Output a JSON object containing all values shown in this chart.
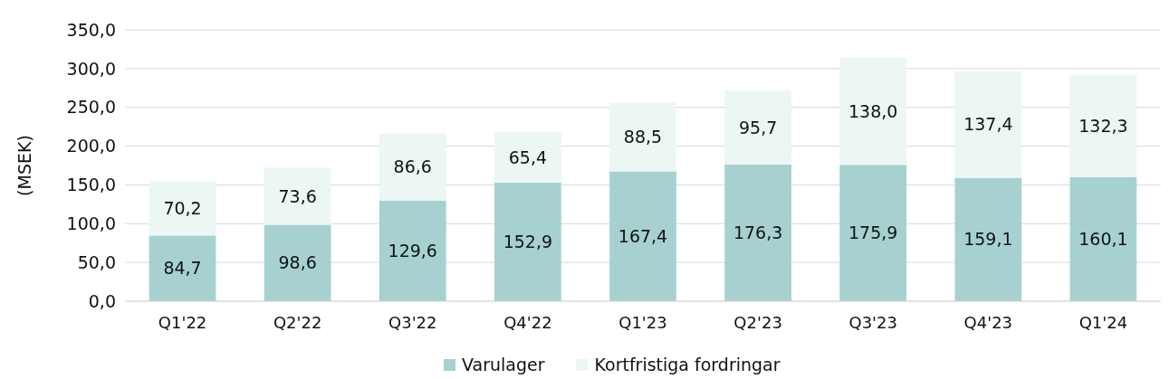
{
  "chart_data": {
    "type": "bar",
    "stacked": true,
    "ylabel": "(MSEK)",
    "categories": [
      "Q1'22",
      "Q2'22",
      "Q3'22",
      "Q4'22",
      "Q1'23",
      "Q2'23",
      "Q3'23",
      "Q4'23",
      "Q1'24"
    ],
    "series": [
      {
        "name": "Varulager",
        "color": "#a6d1d0",
        "values": [
          84.7,
          98.6,
          129.6,
          152.9,
          167.4,
          176.3,
          175.9,
          159.1,
          160.1
        ],
        "value_labels": [
          "84,7",
          "98,6",
          "129,6",
          "152,9",
          "167,4",
          "176,3",
          "175,9",
          "159,1",
          "160,1"
        ]
      },
      {
        "name": "Kortfristiga fordringar",
        "color": "#ecf6f4",
        "values": [
          70.2,
          73.6,
          86.6,
          65.4,
          88.5,
          95.7,
          138.0,
          137.4,
          132.3
        ],
        "value_labels": [
          "70,2",
          "73,6",
          "86,6",
          "65,4",
          "88,5",
          "95,7",
          "138,0",
          "137,4",
          "132,3"
        ]
      }
    ],
    "ylim": [
      0,
      350
    ],
    "yticks": [
      {
        "value": 0,
        "label": "0,0"
      },
      {
        "value": 50,
        "label": "50,0"
      },
      {
        "value": 100,
        "label": "100,0"
      },
      {
        "value": 150,
        "label": "150,0"
      },
      {
        "value": 200,
        "label": "200,0"
      },
      {
        "value": 250,
        "label": "250,0"
      },
      {
        "value": 300,
        "label": "300,0"
      },
      {
        "value": 350,
        "label": "350,0"
      }
    ],
    "grid": "y",
    "legend": "bottom"
  }
}
